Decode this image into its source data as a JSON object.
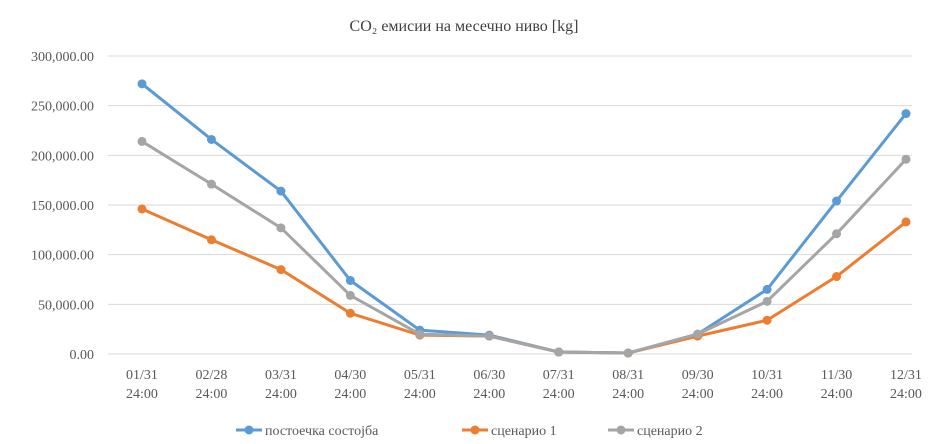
{
  "chart_data": {
    "type": "line",
    "title": "CO₂ емисии на месечно ниво [kg]",
    "categories": [
      [
        "01/31",
        "24:00"
      ],
      [
        "02/28",
        "24:00"
      ],
      [
        "03/31",
        "24:00"
      ],
      [
        "04/30",
        "24:00"
      ],
      [
        "05/31",
        "24:00"
      ],
      [
        "06/30",
        "24:00"
      ],
      [
        "07/31",
        "24:00"
      ],
      [
        "08/31",
        "24:00"
      ],
      [
        "09/30",
        "24:00"
      ],
      [
        "10/31",
        "24:00"
      ],
      [
        "11/30",
        "24:00"
      ],
      [
        "12/31",
        "24:00"
      ]
    ],
    "y_ticks": [
      "0.00",
      "50,000.00",
      "100,000.00",
      "150,000.00",
      "200,000.00",
      "250,000.00",
      "300,000.00"
    ],
    "ylim": [
      0,
      300000
    ],
    "grid": true,
    "legend_position": "bottom",
    "series": [
      {
        "name": "постоечка состојба",
        "color": "#5B9BD5",
        "values": [
          272000,
          216000,
          164000,
          74000,
          24000,
          19000,
          2000,
          1000,
          20000,
          65000,
          154000,
          242000
        ]
      },
      {
        "name": "сценарио 1",
        "color": "#ED7D31",
        "values": [
          146000,
          115000,
          85000,
          41000,
          19000,
          18000,
          2000,
          1000,
          18000,
          34000,
          78000,
          133000
        ]
      },
      {
        "name": "сценарио 2",
        "color": "#A5A5A5",
        "values": [
          214000,
          171000,
          127000,
          59000,
          20000,
          18000,
          2000,
          1000,
          20000,
          53000,
          121000,
          196000
        ]
      }
    ]
  }
}
